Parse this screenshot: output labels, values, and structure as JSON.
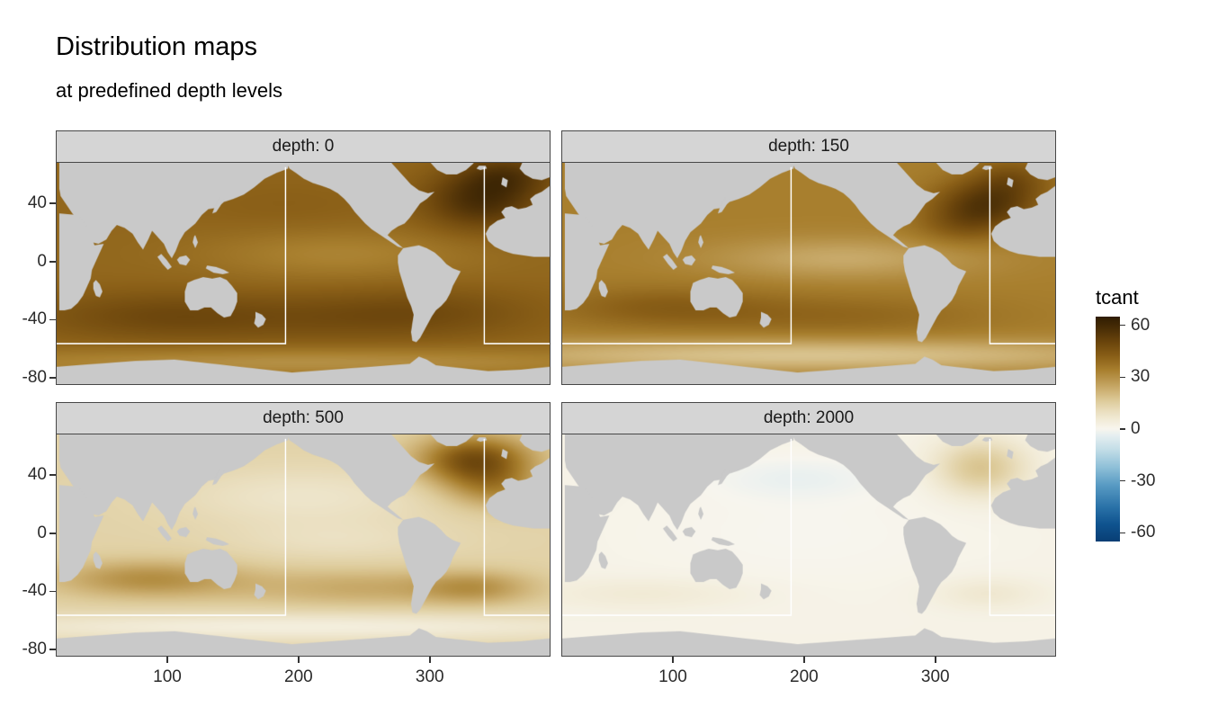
{
  "title": "Distribution maps",
  "subtitle": "at predefined depth levels",
  "chart_data": {
    "type": "heatmap",
    "note": "Faceted equirectangular ocean maps (20E-centred, lon 15-392, lat -85-68). Ocean field tcant approximated as base value plus gaussian anomalies (amp in tcant units, sigmas in degrees). Land/no-data shown gray.",
    "facet_variable": "depth",
    "facets": [
      {
        "label": "depth: 0",
        "depth": 0,
        "base": 40,
        "features": [
          {
            "lon": 340,
            "lat": 42,
            "slon": 30,
            "slat": 14,
            "amp": 18
          },
          {
            "lon": 360,
            "lat": 60,
            "slon": 25,
            "slat": 10,
            "amp": 12
          },
          {
            "lon": 300,
            "lat": -35,
            "slon": 60,
            "slat": 12,
            "amp": 6
          },
          {
            "lon": 90,
            "lat": -38,
            "slon": 70,
            "slat": 12,
            "amp": 8
          },
          {
            "lon": 220,
            "lat": -40,
            "slon": 80,
            "slat": 12,
            "amp": 5
          },
          {
            "lon": 230,
            "lat": 5,
            "slon": 70,
            "slat": 12,
            "amp": -7
          },
          {
            "lon": 200,
            "lat": -70,
            "slon": 200,
            "slat": 7,
            "amp": -10
          },
          {
            "lon": 190,
            "lat": 38,
            "slon": 60,
            "slat": 14,
            "amp": 2
          }
        ]
      },
      {
        "label": "depth: 150",
        "depth": 150,
        "base": 34,
        "features": [
          {
            "lon": 340,
            "lat": 40,
            "slon": 28,
            "slat": 12,
            "amp": 20
          },
          {
            "lon": 320,
            "lat": 25,
            "slon": 25,
            "slat": 10,
            "amp": 8
          },
          {
            "lon": 360,
            "lat": 58,
            "slon": 22,
            "slat": 10,
            "amp": 10
          },
          {
            "lon": 90,
            "lat": -32,
            "slon": 60,
            "slat": 10,
            "amp": 8
          },
          {
            "lon": 230,
            "lat": -38,
            "slon": 80,
            "slat": 10,
            "amp": 6
          },
          {
            "lon": 230,
            "lat": 2,
            "slon": 70,
            "slat": 10,
            "amp": -10
          },
          {
            "lon": 200,
            "lat": -65,
            "slon": 200,
            "slat": 8,
            "amp": -16
          }
        ]
      },
      {
        "label": "depth: 500",
        "depth": 500,
        "base": 14,
        "features": [
          {
            "lon": 335,
            "lat": 50,
            "slon": 30,
            "slat": 12,
            "amp": 34
          },
          {
            "lon": 350,
            "lat": 30,
            "slon": 25,
            "slat": 10,
            "amp": 14
          },
          {
            "lon": 85,
            "lat": -32,
            "slon": 50,
            "slat": 9,
            "amp": 16
          },
          {
            "lon": 250,
            "lat": -38,
            "slon": 70,
            "slat": 9,
            "amp": 10
          },
          {
            "lon": 335,
            "lat": -38,
            "slon": 30,
            "slat": 8,
            "amp": 12
          },
          {
            "lon": 205,
            "lat": 25,
            "slon": 70,
            "slat": 14,
            "amp": -6
          },
          {
            "lon": 230,
            "lat": -5,
            "slon": 60,
            "slat": 10,
            "amp": -4
          },
          {
            "lon": 200,
            "lat": -65,
            "slon": 200,
            "slat": 7,
            "amp": -10
          }
        ]
      },
      {
        "label": "depth: 2000",
        "depth": 2000,
        "base": 2,
        "features": [
          {
            "lon": 335,
            "lat": 45,
            "slon": 25,
            "slat": 14,
            "amp": 16
          },
          {
            "lon": 340,
            "lat": -42,
            "slon": 30,
            "slat": 8,
            "amp": 5
          },
          {
            "lon": 80,
            "lat": -42,
            "slon": 60,
            "slat": 8,
            "amp": 4
          },
          {
            "lon": 195,
            "lat": 38,
            "slon": 45,
            "slat": 10,
            "amp": -4
          },
          {
            "lon": 200,
            "lat": 0,
            "slon": 100,
            "slat": 30,
            "amp": -2
          }
        ]
      }
    ],
    "x_axis": {
      "ticks": [
        100,
        200,
        300
      ],
      "range": [
        15,
        392
      ]
    },
    "y_axis": {
      "ticks": [
        40,
        0,
        -40,
        -80
      ],
      "range": [
        -85,
        68
      ]
    },
    "legend": {
      "title": "tcant",
      "ticks": [
        60,
        30,
        0,
        -30,
        -60
      ],
      "range": [
        -65,
        65
      ]
    },
    "colorscale": [
      [
        65,
        "#2f1c02"
      ],
      [
        58,
        "#4a2e06"
      ],
      [
        50,
        "#6b450c"
      ],
      [
        42,
        "#8a5f17"
      ],
      [
        34,
        "#a87f2e"
      ],
      [
        28,
        "#bb9851"
      ],
      [
        22,
        "#ceb275"
      ],
      [
        16,
        "#decc9c"
      ],
      [
        10,
        "#eadfc0"
      ],
      [
        5,
        "#f2ecd9"
      ],
      [
        1,
        "#f7f4ea"
      ],
      [
        0,
        "#f7f5ee"
      ],
      [
        -4,
        "#e4eef0"
      ],
      [
        -12,
        "#c2dde7"
      ],
      [
        -22,
        "#8fc0d8"
      ],
      [
        -32,
        "#5a9cc4"
      ],
      [
        -45,
        "#2a72a8"
      ],
      [
        -55,
        "#0f538f"
      ],
      [
        -65,
        "#083e74"
      ]
    ],
    "land_color": "#c9c9c9",
    "strip_bg": "#d5d5d5",
    "overlay_color": "#ffffff",
    "overlay_lines": [
      [
        [
          190,
          65
        ],
        [
          190,
          -57
        ],
        [
          15,
          -57
        ]
      ],
      [
        [
          342,
          65
        ],
        [
          342,
          -57
        ],
        [
          392,
          -57
        ]
      ]
    ],
    "land_polygons": {
      "eurasia": [
        [
          17,
          68
        ],
        [
          192,
          68
        ],
        [
          192,
          64
        ],
        [
          183,
          61
        ],
        [
          174,
          57
        ],
        [
          166,
          51
        ],
        [
          158,
          46
        ],
        [
          150,
          43
        ],
        [
          143,
          41
        ],
        [
          138,
          37
        ],
        [
          131,
          36
        ],
        [
          126,
          32
        ],
        [
          121,
          26
        ],
        [
          113,
          20
        ],
        [
          109,
          14
        ],
        [
          106,
          7
        ],
        [
          103,
          2
        ],
        [
          100,
          6
        ],
        [
          97,
          12
        ],
        [
          92,
          17
        ],
        [
          88,
          21
        ],
        [
          85,
          15
        ],
        [
          81,
          8
        ],
        [
          77,
          13
        ],
        [
          73,
          19
        ],
        [
          67,
          23
        ],
        [
          61,
          25
        ],
        [
          57,
          21
        ],
        [
          53,
          15
        ],
        [
          47,
          12
        ],
        [
          42,
          13
        ],
        [
          38,
          17
        ],
        [
          34,
          23
        ],
        [
          31,
          29
        ],
        [
          27,
          33
        ],
        [
          24,
          37
        ],
        [
          21,
          41
        ],
        [
          18,
          45
        ],
        [
          17,
          50
        ]
      ],
      "africa_east": [
        [
          17,
          33
        ],
        [
          30,
          32
        ],
        [
          34,
          29
        ],
        [
          38,
          24
        ],
        [
          41,
          17
        ],
        [
          44,
          11
        ],
        [
          51,
          12
        ],
        [
          48,
          6
        ],
        [
          45,
          0
        ],
        [
          42,
          -6
        ],
        [
          41,
          -12
        ],
        [
          38,
          -18
        ],
        [
          35,
          -24
        ],
        [
          31,
          -29
        ],
        [
          26,
          -33
        ],
        [
          21,
          -34
        ],
        [
          17,
          -34
        ]
      ],
      "madagascar": [
        [
          45,
          -13
        ],
        [
          48,
          -16
        ],
        [
          50,
          -21
        ],
        [
          48,
          -25
        ],
        [
          45,
          -24
        ],
        [
          43,
          -19
        ],
        [
          43,
          -15
        ]
      ],
      "scandinavia": [
        [
          392,
          68
        ],
        [
          392,
          58
        ],
        [
          386,
          56
        ],
        [
          379,
          57
        ],
        [
          373,
          60
        ],
        [
          369,
          64
        ],
        [
          371,
          68
        ]
      ],
      "uk": [
        [
          356,
          58
        ],
        [
          360,
          56
        ],
        [
          359,
          51
        ],
        [
          355,
          53
        ]
      ],
      "europe_west_africa": [
        [
          392,
          52
        ],
        [
          386,
          48
        ],
        [
          381,
          46
        ],
        [
          377,
          43
        ],
        [
          379,
          39
        ],
        [
          374,
          37
        ],
        [
          368,
          36
        ],
        [
          363,
          38
        ],
        [
          358,
          37
        ],
        [
          355,
          34
        ],
        [
          358,
          30
        ],
        [
          352,
          28
        ],
        [
          346,
          24
        ],
        [
          343,
          19
        ],
        [
          345,
          14
        ],
        [
          350,
          10
        ],
        [
          357,
          7
        ],
        [
          364,
          5
        ],
        [
          372,
          4
        ],
        [
          380,
          3
        ],
        [
          392,
          3
        ]
      ],
      "iceland": [
        [
          338,
          66
        ],
        [
          343,
          66
        ],
        [
          344,
          64
        ],
        [
          339,
          63
        ],
        [
          336,
          64
        ]
      ],
      "north_america": [
        [
          191,
          68
        ],
        [
          271,
          68
        ],
        [
          276,
          63
        ],
        [
          281,
          58
        ],
        [
          286,
          53
        ],
        [
          292,
          49
        ],
        [
          299,
          47
        ],
        [
          304,
          48
        ],
        [
          298,
          43
        ],
        [
          293,
          40
        ],
        [
          289,
          35
        ],
        [
          285,
          30
        ],
        [
          281,
          26
        ],
        [
          276,
          24
        ],
        [
          271,
          21
        ],
        [
          268,
          18
        ],
        [
          272,
          15
        ],
        [
          276,
          12
        ],
        [
          280,
          9
        ],
        [
          276,
          10
        ],
        [
          271,
          13
        ],
        [
          266,
          16
        ],
        [
          261,
          19
        ],
        [
          256,
          22
        ],
        [
          251,
          26
        ],
        [
          247,
          30
        ],
        [
          243,
          34
        ],
        [
          239,
          39
        ],
        [
          235,
          43
        ],
        [
          230,
          47
        ],
        [
          224,
          50
        ],
        [
          218,
          52
        ],
        [
          211,
          54
        ],
        [
          204,
          57
        ],
        [
          198,
          61
        ],
        [
          193,
          64
        ]
      ],
      "greenland": [
        [
          301,
          68
        ],
        [
          306,
          63
        ],
        [
          313,
          60
        ],
        [
          321,
          60
        ],
        [
          328,
          63
        ],
        [
          333,
          67
        ],
        [
          334,
          68
        ]
      ],
      "south_america": [
        [
          280,
          9
        ],
        [
          286,
          10
        ],
        [
          292,
          11
        ],
        [
          298,
          9
        ],
        [
          304,
          6
        ],
        [
          309,
          2
        ],
        [
          313,
          -2
        ],
        [
          318,
          -5
        ],
        [
          324,
          -7
        ],
        [
          321,
          -12
        ],
        [
          318,
          -17
        ],
        [
          316,
          -22
        ],
        [
          313,
          -27
        ],
        [
          309,
          -31
        ],
        [
          305,
          -34
        ],
        [
          302,
          -38
        ],
        [
          299,
          -43
        ],
        [
          296,
          -48
        ],
        [
          293,
          -53
        ],
        [
          290,
          -56
        ],
        [
          287,
          -55
        ],
        [
          286,
          -49
        ],
        [
          287,
          -43
        ],
        [
          288,
          -37
        ],
        [
          286,
          -31
        ],
        [
          283,
          -25
        ],
        [
          281,
          -19
        ],
        [
          279,
          -13
        ],
        [
          277,
          -7
        ],
        [
          276,
          -1
        ],
        [
          276,
          4
        ]
      ],
      "australia": [
        [
          113,
          -21
        ],
        [
          115,
          -15
        ],
        [
          120,
          -13
        ],
        [
          127,
          -11
        ],
        [
          134,
          -12
        ],
        [
          140,
          -11
        ],
        [
          145,
          -13
        ],
        [
          149,
          -17
        ],
        [
          153,
          -22
        ],
        [
          153,
          -28
        ],
        [
          151,
          -33
        ],
        [
          148,
          -38
        ],
        [
          143,
          -39
        ],
        [
          138,
          -36
        ],
        [
          133,
          -32
        ],
        [
          128,
          -32
        ],
        [
          123,
          -34
        ],
        [
          117,
          -34
        ],
        [
          113,
          -28
        ]
      ],
      "new_zealand": [
        [
          167,
          -35
        ],
        [
          172,
          -37
        ],
        [
          175,
          -40
        ],
        [
          173,
          -44
        ],
        [
          169,
          -46
        ],
        [
          166,
          -43
        ],
        [
          167,
          -39
        ]
      ],
      "new_guinea": [
        [
          130,
          -3
        ],
        [
          137,
          -4
        ],
        [
          143,
          -6
        ],
        [
          147,
          -8
        ],
        [
          142,
          -9
        ],
        [
          135,
          -8
        ],
        [
          129,
          -5
        ]
      ],
      "borneo": [
        [
          109,
          3
        ],
        [
          114,
          4
        ],
        [
          117,
          1
        ],
        [
          114,
          -3
        ],
        [
          109,
          -2
        ],
        [
          107,
          1
        ]
      ],
      "sumatra": [
        [
          95,
          5
        ],
        [
          99,
          1
        ],
        [
          103,
          -4
        ],
        [
          100,
          -6
        ],
        [
          96,
          -2
        ],
        [
          92,
          3
        ]
      ],
      "japan": [
        [
          137,
          34
        ],
        [
          140,
          38
        ],
        [
          143,
          43
        ],
        [
          140,
          44
        ],
        [
          136,
          38
        ],
        [
          134,
          33
        ]
      ],
      "philippines": [
        [
          121,
          18
        ],
        [
          123,
          13
        ],
        [
          121,
          9
        ],
        [
          119,
          13
        ],
        [
          120,
          17
        ]
      ],
      "antarctica": [
        [
          15,
          -73
        ],
        [
          45,
          -71
        ],
        [
          75,
          -69
        ],
        [
          105,
          -68
        ],
        [
          135,
          -71
        ],
        [
          165,
          -74
        ],
        [
          195,
          -77
        ],
        [
          225,
          -75
        ],
        [
          255,
          -73
        ],
        [
          285,
          -71
        ],
        [
          292,
          -66
        ],
        [
          298,
          -68
        ],
        [
          305,
          -72
        ],
        [
          315,
          -73
        ],
        [
          345,
          -76
        ],
        [
          370,
          -75
        ],
        [
          392,
          -73
        ],
        [
          392,
          -85
        ],
        [
          15,
          -85
        ]
      ]
    }
  }
}
